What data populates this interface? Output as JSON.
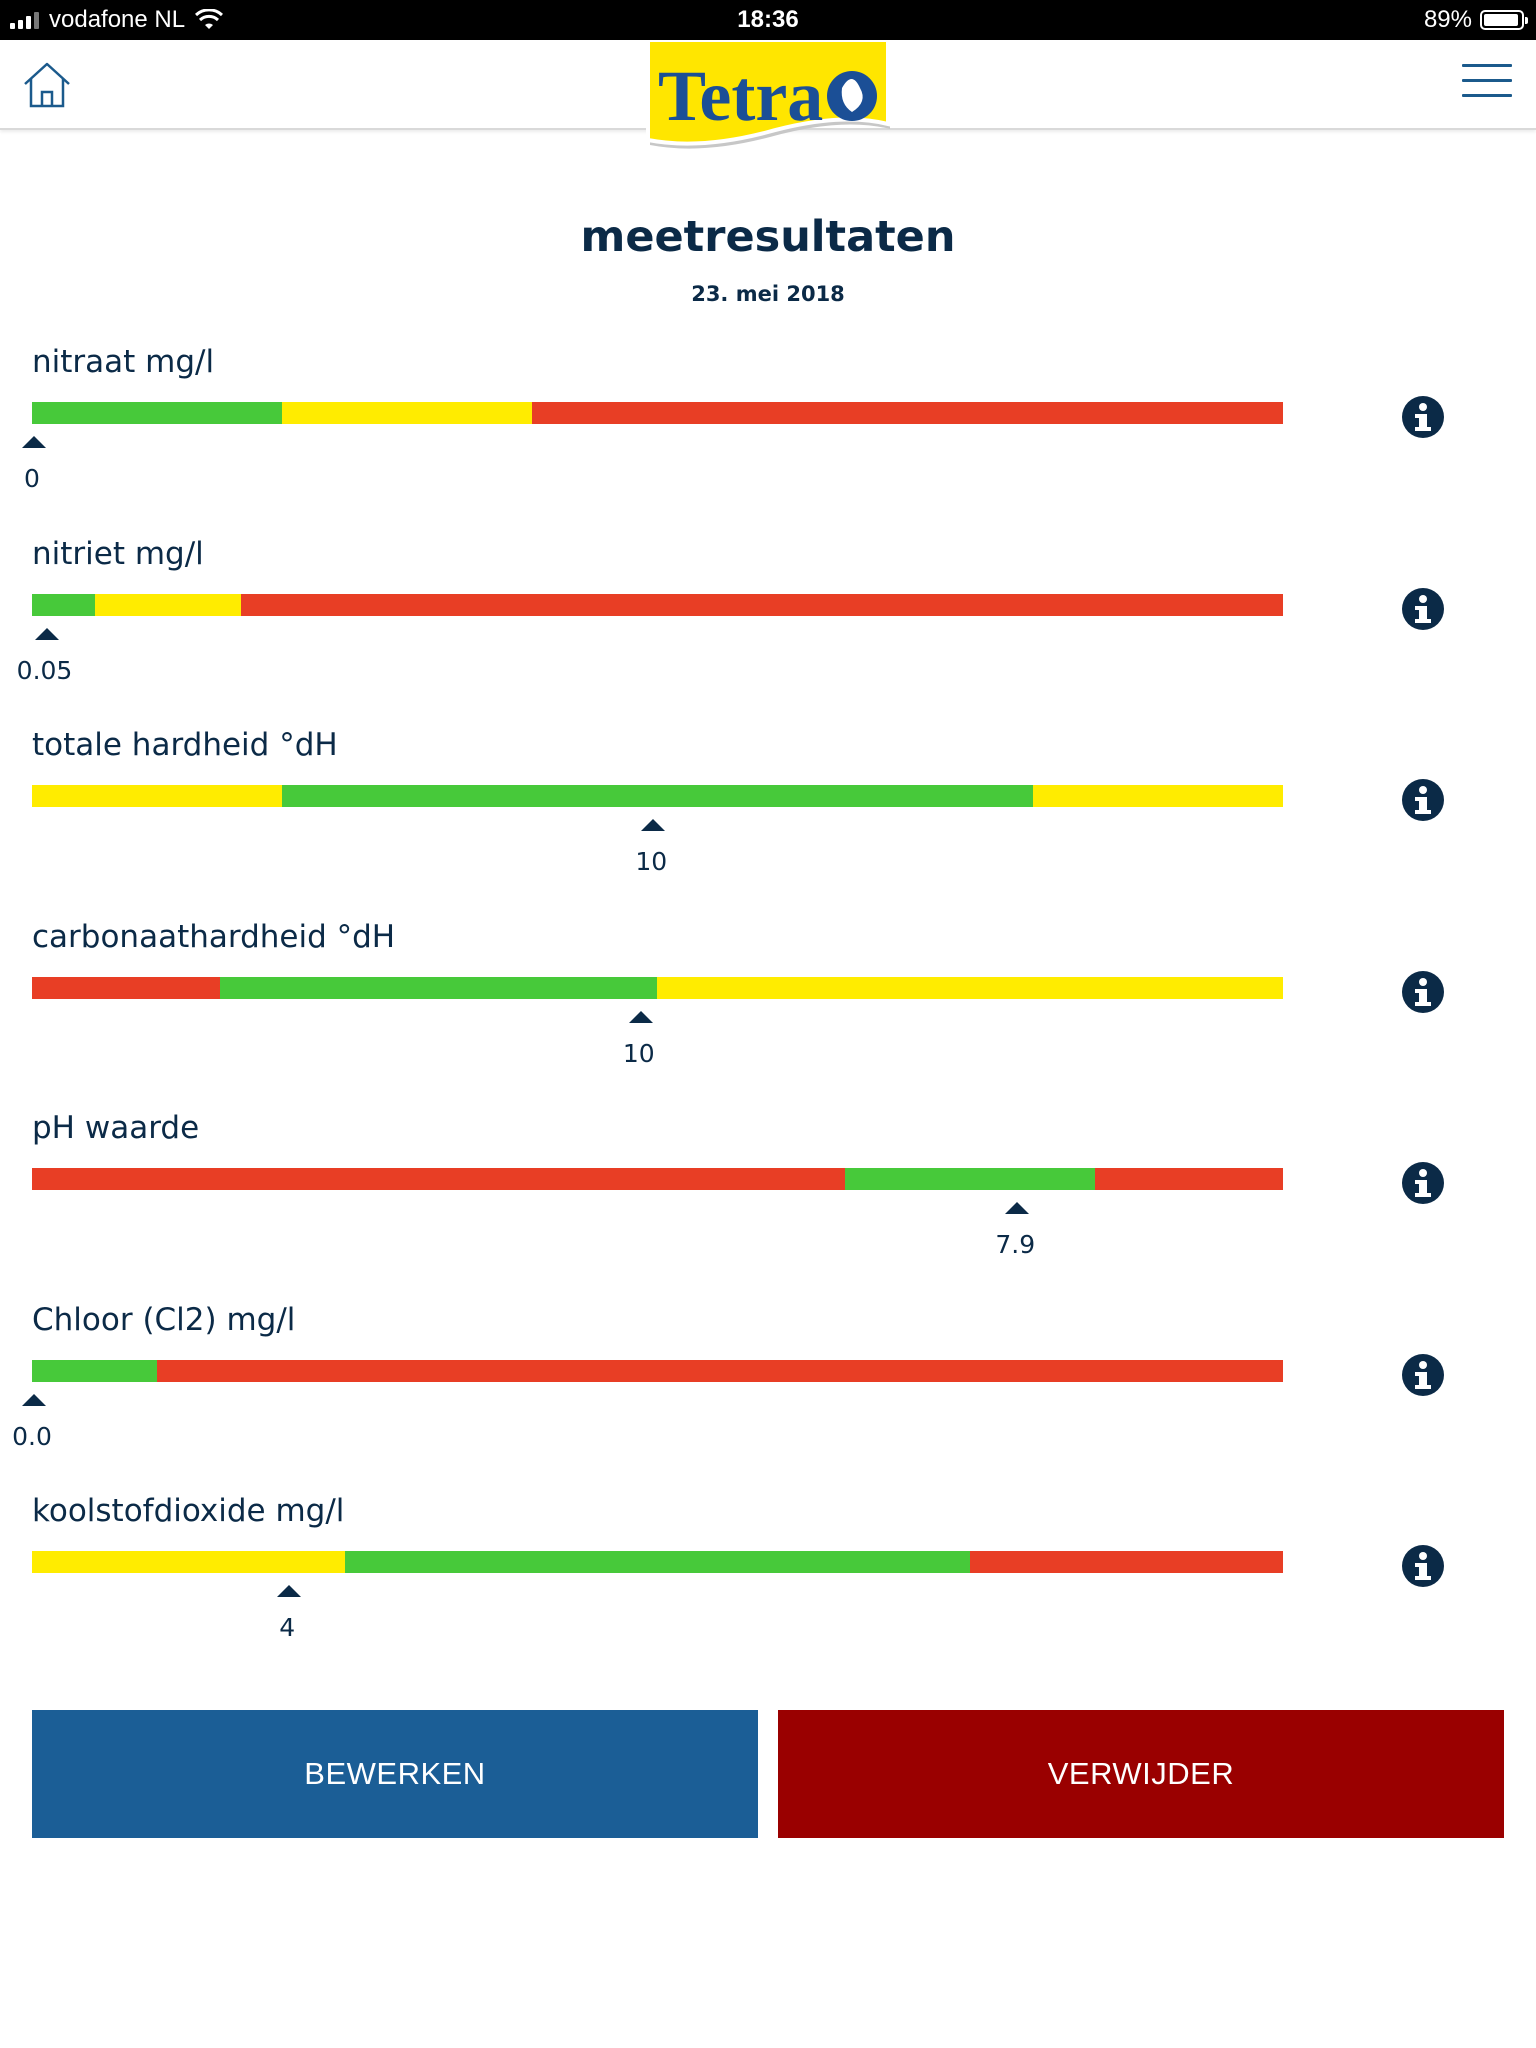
{
  "status_bar": {
    "carrier": "vodafone NL",
    "time": "18:36",
    "battery": "89%",
    "battery_level": 0.89
  },
  "header": {
    "home_icon": "home-icon",
    "menu_icon": "hamburger-menu-icon",
    "logo_text": "Tetra"
  },
  "page": {
    "title": "meetresultaten",
    "date": "23. mei 2018"
  },
  "colors": {
    "green": "#47c93a",
    "yellow": "#ffec00",
    "red": "#e83e25",
    "navy": "#0b2a47",
    "edit_blue": "#1b5e96",
    "delete_red": "#9a0000"
  },
  "measurements": [
    {
      "label": "nitraat mg/l",
      "value": "0",
      "marker_fraction": 0.0,
      "segments": [
        {
          "color": "green",
          "fraction": 0.2
        },
        {
          "color": "yellow",
          "fraction": 0.2
        },
        {
          "color": "red",
          "fraction": 0.6
        }
      ]
    },
    {
      "label": "nitriet mg/l",
      "value": "0.05",
      "marker_fraction": 0.01,
      "segments": [
        {
          "color": "green",
          "fraction": 0.05
        },
        {
          "color": "yellow",
          "fraction": 0.117
        },
        {
          "color": "red",
          "fraction": 0.833
        }
      ]
    },
    {
      "label": "totale hardheid °dH",
      "value": "10",
      "marker_fraction": 0.495,
      "segments": [
        {
          "color": "yellow",
          "fraction": 0.2
        },
        {
          "color": "green",
          "fraction": 0.6
        },
        {
          "color": "yellow",
          "fraction": 0.2
        }
      ]
    },
    {
      "label": "carbonaathardheid °dH",
      "value": "10",
      "marker_fraction": 0.485,
      "segments": [
        {
          "color": "red",
          "fraction": 0.15
        },
        {
          "color": "green",
          "fraction": 0.35
        },
        {
          "color": "yellow",
          "fraction": 0.5
        }
      ]
    },
    {
      "label": "pH waarde",
      "value": "7.9",
      "marker_fraction": 0.786,
      "segments": [
        {
          "color": "red",
          "fraction": 0.65
        },
        {
          "color": "green",
          "fraction": 0.2
        },
        {
          "color": "red",
          "fraction": 0.15
        }
      ]
    },
    {
      "label": "Chloor (Cl2) mg/l",
      "value": "0.0",
      "marker_fraction": 0.0,
      "segments": [
        {
          "color": "green",
          "fraction": 0.1
        },
        {
          "color": "red",
          "fraction": 0.9
        }
      ]
    },
    {
      "label": "koolstofdioxide mg/l",
      "value": "4",
      "marker_fraction": 0.204,
      "segments": [
        {
          "color": "yellow",
          "fraction": 0.25
        },
        {
          "color": "green",
          "fraction": 0.5
        },
        {
          "color": "red",
          "fraction": 0.25
        }
      ]
    }
  ],
  "buttons": {
    "edit": "BEWERKEN",
    "delete": "VERWIJDER"
  }
}
